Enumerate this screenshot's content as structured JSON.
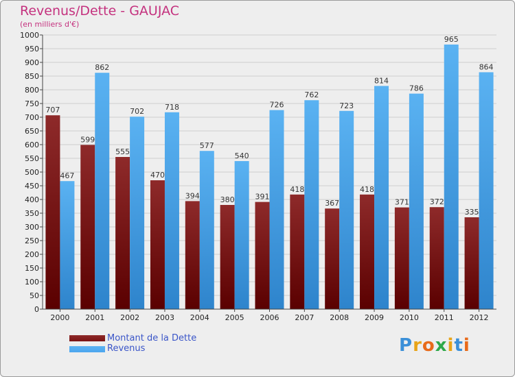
{
  "chart_data": {
    "type": "bar",
    "title": "Revenus/Dette - GAUJAC",
    "subtitle": "(en milliers d'€)",
    "categories": [
      "2000",
      "2001",
      "2002",
      "2003",
      "2004",
      "2005",
      "2006",
      "2007",
      "2008",
      "2009",
      "2010",
      "2011",
      "2012"
    ],
    "series": [
      {
        "name": "Montant de la Dette",
        "color": "#7a1212",
        "values": [
          707,
          599,
          555,
          470,
          394,
          380,
          391,
          418,
          367,
          418,
          371,
          372,
          335
        ]
      },
      {
        "name": "Revenus",
        "color": "#4da6ee",
        "values": [
          467,
          862,
          702,
          718,
          577,
          540,
          726,
          762,
          723,
          814,
          786,
          965,
          864
        ]
      }
    ],
    "ylim": [
      0,
      1000
    ],
    "ytick_step": 50,
    "grid": true,
    "legend_position": "bottom-left"
  },
  "brand": {
    "letters": [
      "P",
      "r",
      "o",
      "x",
      "i",
      "t",
      "i"
    ],
    "colors": [
      "#3a8fd8",
      "#e8a418",
      "#e86a1a",
      "#2fa84a",
      "#e8a418",
      "#3a8fd8",
      "#e86a1a"
    ]
  }
}
